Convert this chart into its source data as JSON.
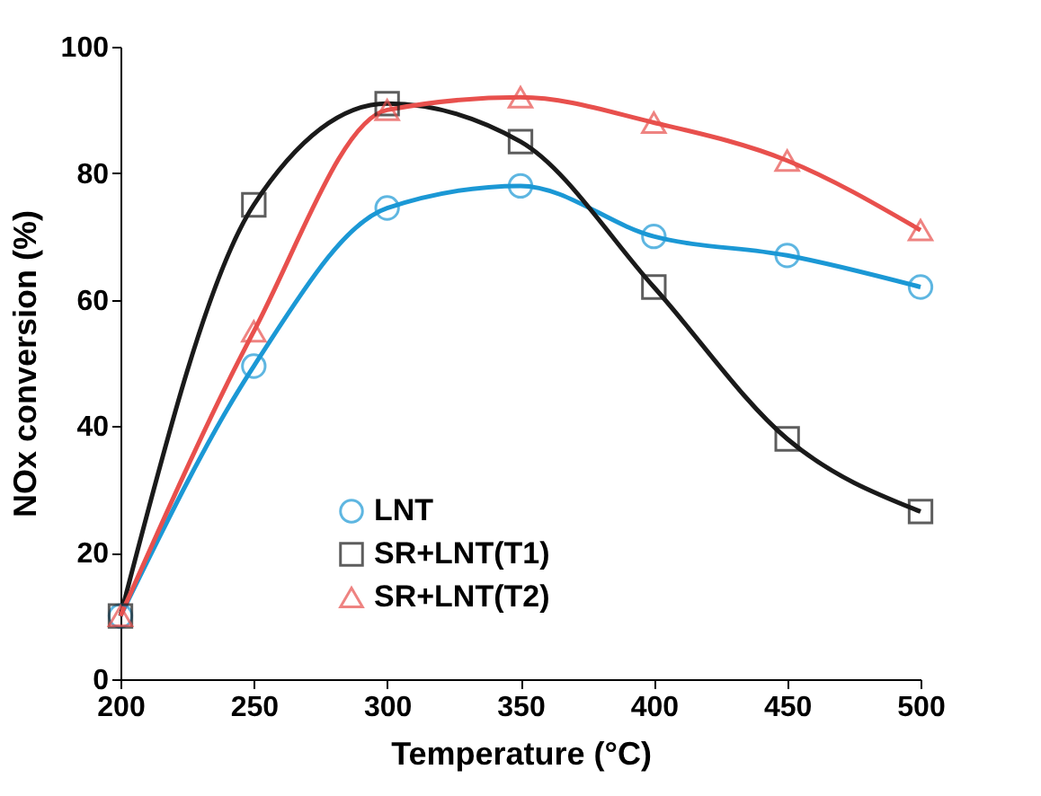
{
  "chart_data": {
    "type": "line",
    "xlabel": "Temperature (°C)",
    "ylabel": "NOx conversion (%)",
    "x": [
      200,
      250,
      300,
      350,
      400,
      450,
      500
    ],
    "series": [
      {
        "name": "LNT",
        "color": "#1b98d5",
        "marker": "circle",
        "values": [
          10,
          49.5,
          74.5,
          78,
          70,
          67,
          62
        ]
      },
      {
        "name": "SR+LNT(T1)",
        "color": "#1a1a1a",
        "marker": "square",
        "values": [
          10,
          75,
          91,
          85,
          62,
          38,
          26.5
        ]
      },
      {
        "name": "SR+LNT(T2)",
        "color": "#e8504d",
        "marker": "triangle",
        "values": [
          10,
          55,
          90,
          92,
          88,
          82,
          71
        ]
      }
    ],
    "xlim": [
      200,
      500
    ],
    "xticks": [
      200,
      250,
      300,
      350,
      400,
      450,
      500
    ],
    "ylim": [
      0,
      100
    ],
    "yticks": [
      0,
      20,
      40,
      60,
      80,
      100
    ],
    "grid": false,
    "legend": "bottom",
    "line_style": "solid"
  }
}
